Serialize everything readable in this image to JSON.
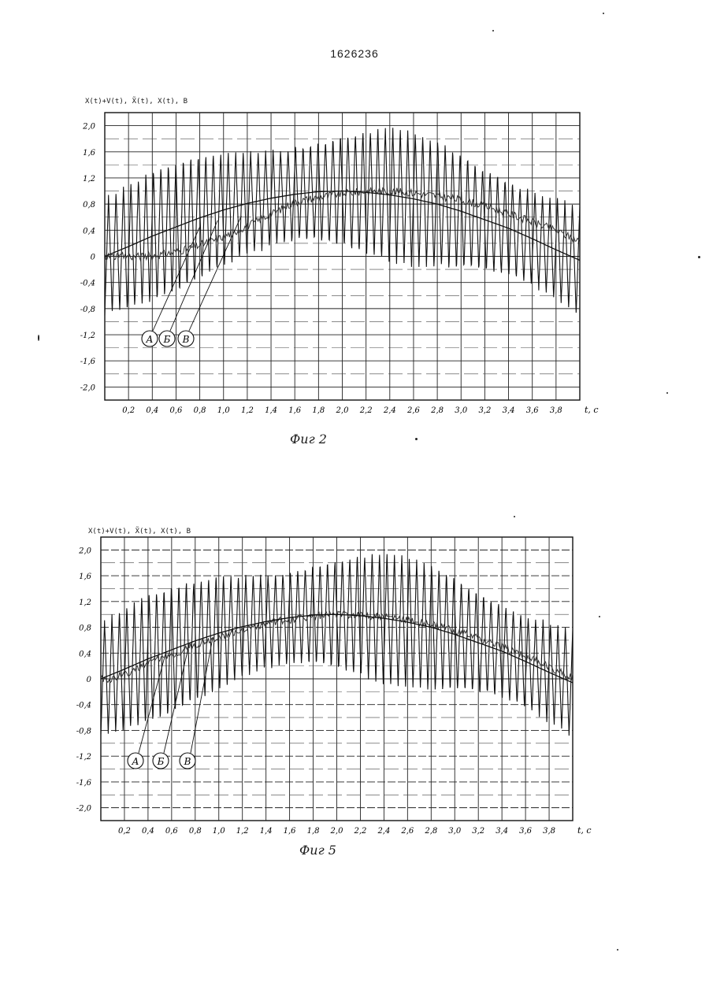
{
  "document": {
    "patent_number": "1626236"
  },
  "figures": [
    {
      "caption": "Фиг 2",
      "y_title": "X(t)+V(t), X̃(t), X(t), B",
      "callouts": [
        "A",
        "Б",
        "В"
      ]
    },
    {
      "caption": "Фиг 5",
      "y_title": "X(t)+V(t), X̃(t), X(t), B",
      "callouts": [
        "A",
        "Б",
        "В"
      ]
    }
  ],
  "chart_data": [
    {
      "type": "line",
      "xlabel": "t, c",
      "x_ticks": [
        "0,2",
        "0,4",
        "0,6",
        "0,8",
        "1,0",
        "1,2",
        "1,4",
        "1,6",
        "1,8",
        "2,0",
        "2,2",
        "2,4",
        "2,6",
        "2,8",
        "3,0",
        "3,2",
        "3,4",
        "3,6",
        "3,8"
      ],
      "y_ticks": [
        "2,0",
        "1,6",
        "1,2",
        "0,8",
        "0,4",
        "0",
        "-0,4",
        "-0,8",
        "-1,2",
        "-1,6",
        "-2,0"
      ],
      "xlim": [
        0,
        4.0
      ],
      "ylim": [
        -2.2,
        2.2
      ],
      "series": [
        {
          "name": "A",
          "kind": "noisy_oscillation",
          "amplitude": 1.0,
          "period": 0.063,
          "color": "#111111"
        },
        {
          "name": "Б",
          "kind": "estimate_trace",
          "color": "#333333"
        },
        {
          "name": "В",
          "kind": "smooth_signal",
          "x": [
            0.0,
            0.2,
            0.4,
            0.6,
            0.8,
            1.0,
            1.2,
            1.4,
            1.6,
            1.8,
            2.0,
            2.2,
            2.4,
            2.6,
            2.8,
            3.0,
            3.2,
            3.4,
            3.6,
            3.8,
            4.0
          ],
          "y": [
            0.0,
            0.15,
            0.31,
            0.45,
            0.59,
            0.71,
            0.81,
            0.89,
            0.95,
            0.99,
            1.0,
            0.98,
            0.94,
            0.88,
            0.8,
            0.69,
            0.56,
            0.43,
            0.27,
            0.1,
            -0.06
          ],
          "color": "#111111"
        }
      ],
      "grid": true
    },
    {
      "type": "line",
      "xlabel": "t, c",
      "x_ticks": [
        "0,2",
        "0,4",
        "0,6",
        "0,8",
        "1,0",
        "1,2",
        "1,4",
        "1,6",
        "1,8",
        "2,0",
        "2,2",
        "2,4",
        "2,6",
        "2,8",
        "3,0",
        "3,2",
        "3,4",
        "3,6",
        "3,8"
      ],
      "y_ticks": [
        "2,0",
        "1,6",
        "1,2",
        "0,8",
        "0,4",
        "0",
        "-0,4",
        "-0,8",
        "-1,2",
        "-1,6",
        "-2,0"
      ],
      "xlim": [
        0,
        4.0
      ],
      "ylim": [
        -2.2,
        2.2
      ],
      "series": [
        {
          "name": "A",
          "kind": "noisy_oscillation",
          "amplitude": 1.0,
          "period": 0.063,
          "color": "#111111"
        },
        {
          "name": "Б",
          "kind": "estimate_trace",
          "color": "#333333"
        },
        {
          "name": "В",
          "kind": "smooth_signal",
          "x": [
            0.0,
            0.2,
            0.4,
            0.6,
            0.8,
            1.0,
            1.2,
            1.4,
            1.6,
            1.8,
            2.0,
            2.2,
            2.4,
            2.6,
            2.8,
            3.0,
            3.2,
            3.4,
            3.6,
            3.8,
            4.0
          ],
          "y": [
            0.0,
            0.15,
            0.31,
            0.45,
            0.59,
            0.71,
            0.81,
            0.89,
            0.95,
            0.99,
            1.0,
            0.98,
            0.94,
            0.88,
            0.8,
            0.69,
            0.56,
            0.43,
            0.27,
            0.1,
            -0.06
          ],
          "color": "#111111"
        }
      ],
      "grid": true
    }
  ]
}
